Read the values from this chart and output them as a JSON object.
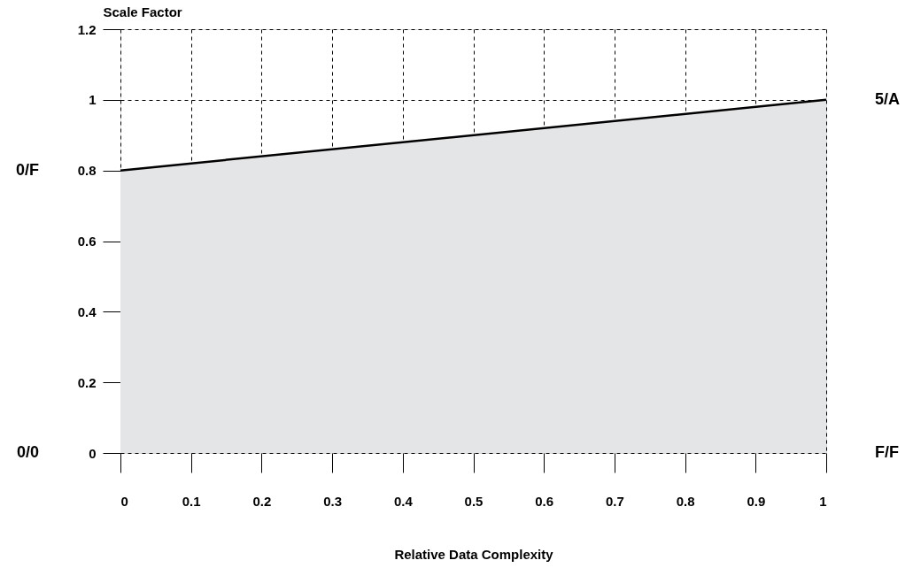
{
  "chart_data": {
    "type": "area",
    "xlabel": "Relative Data Complexity",
    "ylabel": "Scale Factor",
    "x": [
      0,
      1
    ],
    "series": [
      {
        "color": "#e4e5e7",
        "values": [
          0.8,
          1.0
        ]
      }
    ],
    "xlim": [
      0,
      1
    ],
    "xticks": [
      0,
      0.1,
      0.2,
      0.3,
      0.4,
      0.5,
      0.6,
      0.7,
      0.8,
      0.9,
      1
    ],
    "ylim": [
      0,
      1.2
    ],
    "yticks": [
      0,
      0.2,
      0.4,
      0.6,
      0.8,
      1,
      1.2
    ],
    "grid": true,
    "annotations": [
      "0/F",
      "5/A",
      "0/0",
      "F/F"
    ]
  }
}
